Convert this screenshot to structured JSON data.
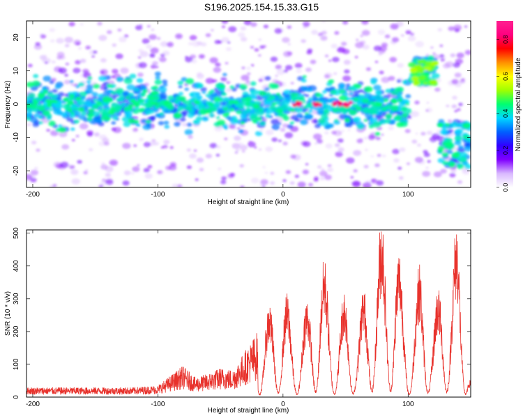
{
  "title": "S196.2025.154.15.33.G15",
  "chart_data": [
    {
      "type": "heatmap",
      "xlabel": "Height of straight line (km)",
      "ylabel": "Frequency (Hz)",
      "xlim": [
        -205,
        150
      ],
      "ylim": [
        -25,
        25
      ],
      "xticks": [
        -200,
        -100,
        0,
        100
      ],
      "yticks": [
        -20,
        -10,
        0,
        10,
        20
      ],
      "colorbar": {
        "label": "Normalized spectral amplitude",
        "range": [
          0.0,
          0.9
        ],
        "ticks": [
          0.0,
          0.2,
          0.4,
          0.6,
          0.8
        ],
        "colors": [
          "#ffffff",
          "#d9b8ff",
          "#8000ff",
          "#3000ff",
          "#0060ff",
          "#00d8ff",
          "#00ff70",
          "#a0ff00",
          "#ffff00",
          "#ff9000",
          "#ff0000",
          "#ff0080",
          "#ff2090"
        ]
      },
      "features": [
        {
          "desc": "main ridge",
          "x_range": [
            -205,
            100
          ],
          "freq_center": 0,
          "freq_halfwidth": 5
        },
        {
          "desc": "strong peaks",
          "x": [
            12,
            27,
            43,
            52
          ],
          "freq": 0,
          "amplitude": 0.85
        },
        {
          "desc": "shifted band",
          "x_range": [
            103,
            122
          ],
          "freq_center": 10,
          "amplitude": 0.5
        },
        {
          "desc": "negative band",
          "x_range": [
            125,
            150
          ],
          "freq_center": -12,
          "amplitude": 0.4
        }
      ]
    },
    {
      "type": "line",
      "xlabel": "Height of straight line (km)",
      "ylabel": "SNR (10 * v/v)",
      "xlim": [
        -205,
        150
      ],
      "ylim": [
        0,
        510
      ],
      "xticks": [
        -200,
        -100,
        0,
        100
      ],
      "yticks": [
        0,
        100,
        200,
        300,
        400,
        500
      ],
      "color": "#e8322c",
      "series": [
        {
          "x": [
            -205,
            -180,
            -150,
            -120,
            -100,
            -90,
            -80,
            -70,
            -60,
            -50,
            -40,
            -30,
            -20,
            -10,
            0,
            10,
            20,
            30,
            40,
            50,
            60,
            70,
            80,
            90,
            100,
            110,
            120,
            130,
            140,
            150
          ],
          "y": [
            25,
            25,
            25,
            25,
            30,
            55,
            80,
            50,
            60,
            75,
            70,
            120,
            170,
            230,
            280,
            170,
            240,
            390,
            200,
            260,
            190,
            360,
            440,
            420,
            180,
            330,
            220,
            330,
            420,
            60
          ]
        }
      ]
    }
  ]
}
